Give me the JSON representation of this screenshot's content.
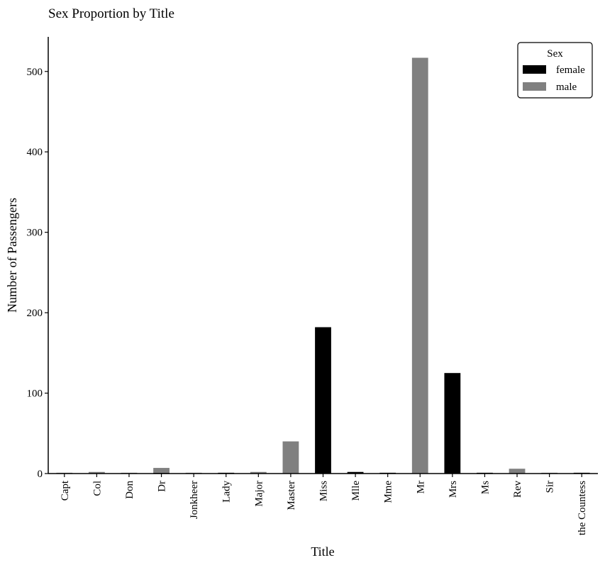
{
  "chart_data": {
    "type": "bar",
    "title": "Sex Proportion by Title",
    "xlabel": "Title",
    "ylabel": "Number of Passengers",
    "categories": [
      "Capt",
      "Col",
      "Don",
      "Dr",
      "Jonkheer",
      "Lady",
      "Major",
      "Master",
      "Miss",
      "Mlle",
      "Mme",
      "Mr",
      "Mrs",
      "Ms",
      "Rev",
      "Sir",
      "the Countess"
    ],
    "series": [
      {
        "name": "female",
        "color": "#000000",
        "values": [
          0,
          0,
          0,
          1,
          0,
          1,
          0,
          0,
          182,
          2,
          1,
          0,
          125,
          1,
          0,
          0,
          1
        ]
      },
      {
        "name": "male",
        "color": "#808080",
        "values": [
          1,
          2,
          1,
          6,
          1,
          0,
          2,
          40,
          0,
          0,
          0,
          517,
          0,
          0,
          6,
          1,
          0
        ]
      }
    ],
    "ylim": [
      0,
      543
    ],
    "yticks": [
      0,
      100,
      200,
      300,
      400,
      500
    ],
    "legend": {
      "title": "Sex",
      "placement": "top-right"
    },
    "grid": false
  }
}
